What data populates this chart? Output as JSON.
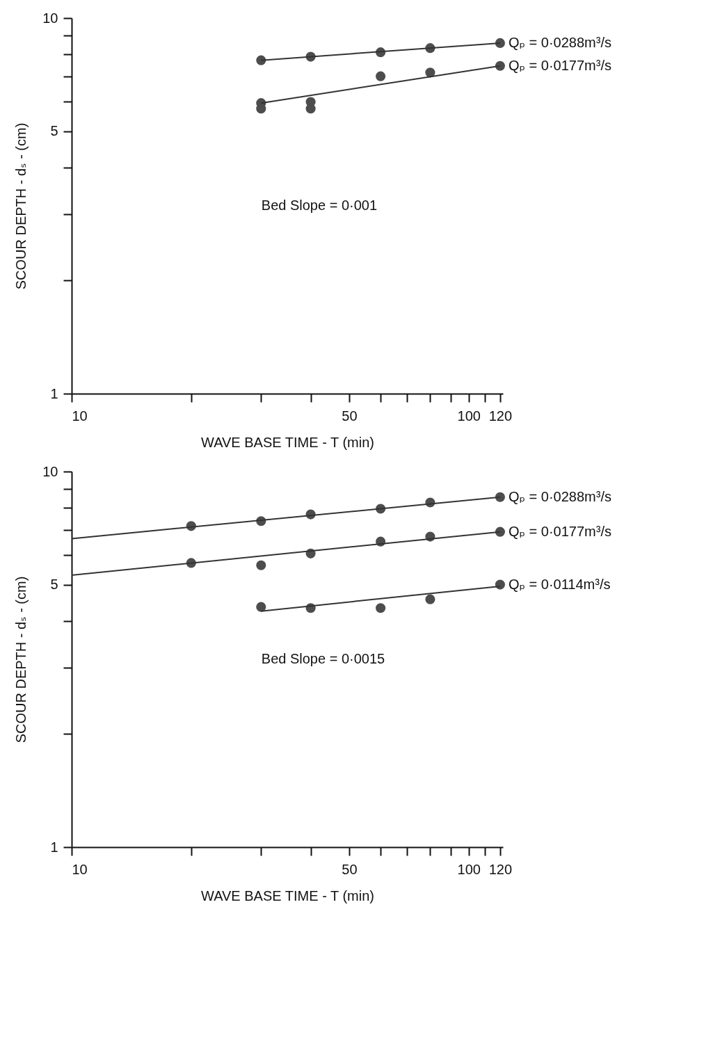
{
  "chart_data": [
    {
      "type": "scatter",
      "xlabel": "WAVE  BASE  TIME  - T (min)",
      "ylabel": "SCOUR DEPTH - dₛ - (cm)",
      "log": "xy",
      "xlim": [
        10,
        122
      ],
      "ylim": [
        1,
        10
      ],
      "xticks": [
        10,
        {
          "value": 20,
          "label": null
        },
        {
          "value": 30,
          "label": null
        },
        {
          "value": 40,
          "label": null
        },
        50,
        {
          "value": 60,
          "label": null
        },
        {
          "value": 70,
          "label": null
        },
        {
          "value": 80,
          "label": null
        },
        {
          "value": 90,
          "label": null
        },
        100,
        {
          "value": 110,
          "label": null
        },
        120
      ],
      "yticks": [
        1,
        {
          "value": 2,
          "label": null
        },
        {
          "value": 3,
          "label": null
        },
        {
          "value": 4,
          "label": null
        },
        5,
        {
          "value": 6,
          "label": null
        },
        {
          "value": 7,
          "label": null
        },
        {
          "value": 8,
          "label": null
        },
        {
          "value": 9,
          "label": null
        },
        10
      ],
      "grid": false,
      "marker": "circle",
      "line_style": "solid",
      "annotations": [
        "Bed Slope = 0·001"
      ],
      "series": [
        {
          "name": "Qₚ = 0·0288m³/s",
          "color": "#4d4d4d",
          "x": [
            30,
            40,
            60,
            80,
            120
          ],
          "values": [
            7.72,
            7.89,
            8.11,
            8.32,
            8.58
          ]
        },
        {
          "name": "Qₚ = 0·0177m³/s",
          "color": "#4d4d4d",
          "x": [
            30,
            30,
            40,
            40,
            60,
            80,
            120
          ],
          "values": [
            5.94,
            5.74,
            5.98,
            5.74,
            7.0,
            7.16,
            7.46
          ]
        },
        {
          "type": "line",
          "marker": "none",
          "color": "#333333",
          "x": [
            30,
            120
          ],
          "values": [
            7.72,
            8.58
          ]
        },
        {
          "type": "line",
          "marker": "none",
          "color": "#333333",
          "x": [
            30,
            120
          ],
          "values": [
            5.94,
            7.46
          ]
        }
      ]
    },
    {
      "type": "scatter",
      "xlabel": "WAVE  BASE  TIME  - T (min)",
      "ylabel": "SCOUR DEPTH - dₛ - (cm)",
      "log": "xy",
      "xlim": [
        10,
        122
      ],
      "ylim": [
        1,
        10
      ],
      "xticks": [
        10,
        {
          "value": 20,
          "label": null
        },
        {
          "value": 30,
          "label": null
        },
        {
          "value": 40,
          "label": null
        },
        50,
        {
          "value": 60,
          "label": null
        },
        {
          "value": 70,
          "label": null
        },
        {
          "value": 80,
          "label": null
        },
        {
          "value": 90,
          "label": null
        },
        100,
        {
          "value": 110,
          "label": null
        },
        120
      ],
      "yticks": [
        1,
        {
          "value": 2,
          "label": null
        },
        {
          "value": 3,
          "label": null
        },
        {
          "value": 4,
          "label": null
        },
        5,
        {
          "value": 6,
          "label": null
        },
        {
          "value": 7,
          "label": null
        },
        {
          "value": 8,
          "label": null
        },
        {
          "value": 9,
          "label": null
        },
        10
      ],
      "grid": false,
      "marker": "circle",
      "line_style": "solid",
      "annotations": [
        "Bed Slope = 0·0015"
      ],
      "series": [
        {
          "name": "Qₚ = 0·0288m³/s",
          "color": "#4d4d4d",
          "x": [
            20,
            30,
            40,
            60,
            80,
            120
          ],
          "values": [
            7.16,
            7.38,
            7.69,
            7.96,
            8.27,
            8.55
          ]
        },
        {
          "name": "Qₚ = 0·0177m³/s",
          "color": "#4d4d4d",
          "x": [
            20,
            30,
            40,
            60,
            80,
            120
          ],
          "values": [
            5.71,
            5.63,
            6.05,
            6.51,
            6.71,
            6.91
          ]
        },
        {
          "name": "Qₚ = 0·0114m³/s",
          "color": "#4d4d4d",
          "x": [
            30,
            40,
            60,
            80,
            120
          ],
          "values": [
            4.36,
            4.33,
            4.33,
            4.57,
            5.0
          ]
        },
        {
          "type": "line",
          "marker": "none",
          "color": "#333333",
          "x": [
            10,
            120
          ],
          "values": [
            6.63,
            8.55
          ]
        },
        {
          "type": "line",
          "marker": "none",
          "color": "#333333",
          "x": [
            10,
            120
          ],
          "values": [
            5.3,
            6.91
          ]
        },
        {
          "type": "line",
          "marker": "none",
          "color": "#333333",
          "x": [
            30,
            120
          ],
          "values": [
            4.25,
            4.95
          ]
        }
      ]
    }
  ]
}
